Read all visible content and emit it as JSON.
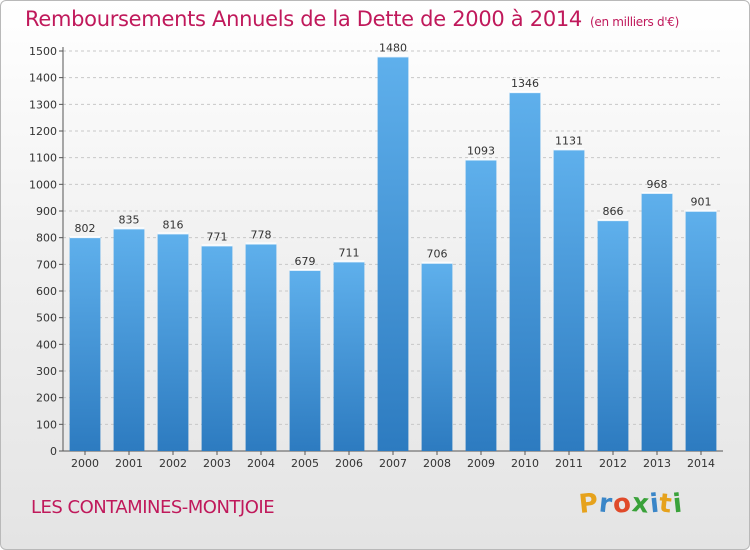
{
  "chart_data": {
    "type": "bar",
    "title": "Remboursements Annuels de la Dette de 2000 à 2014",
    "unit": "(en milliers d'€)",
    "categories": [
      "2000",
      "2001",
      "2002",
      "2003",
      "2004",
      "2005",
      "2006",
      "2007",
      "2008",
      "2009",
      "2010",
      "2011",
      "2012",
      "2013",
      "2014"
    ],
    "values": [
      802,
      835,
      816,
      771,
      778,
      679,
      711,
      1480,
      706,
      1093,
      1346,
      1131,
      866,
      968,
      901
    ],
    "ylim": [
      0,
      1500
    ],
    "yticks": [
      0,
      100,
      200,
      300,
      400,
      500,
      600,
      700,
      800,
      900,
      1000,
      1100,
      1200,
      1300,
      1400,
      1500
    ],
    "grid": true,
    "bar_color": "#3f8fd6"
  },
  "footer": {
    "name": "LES CONTAMINES-MONTJOIE"
  },
  "logo": {
    "letters": [
      "P",
      "r",
      "o",
      "x",
      "i",
      "t",
      "i"
    ],
    "colors": [
      "#e6a21c",
      "#3a86c8",
      "#e04a2a",
      "#3aa23a",
      "#3a86c8",
      "#e6a21c",
      "#3aa23a"
    ]
  }
}
